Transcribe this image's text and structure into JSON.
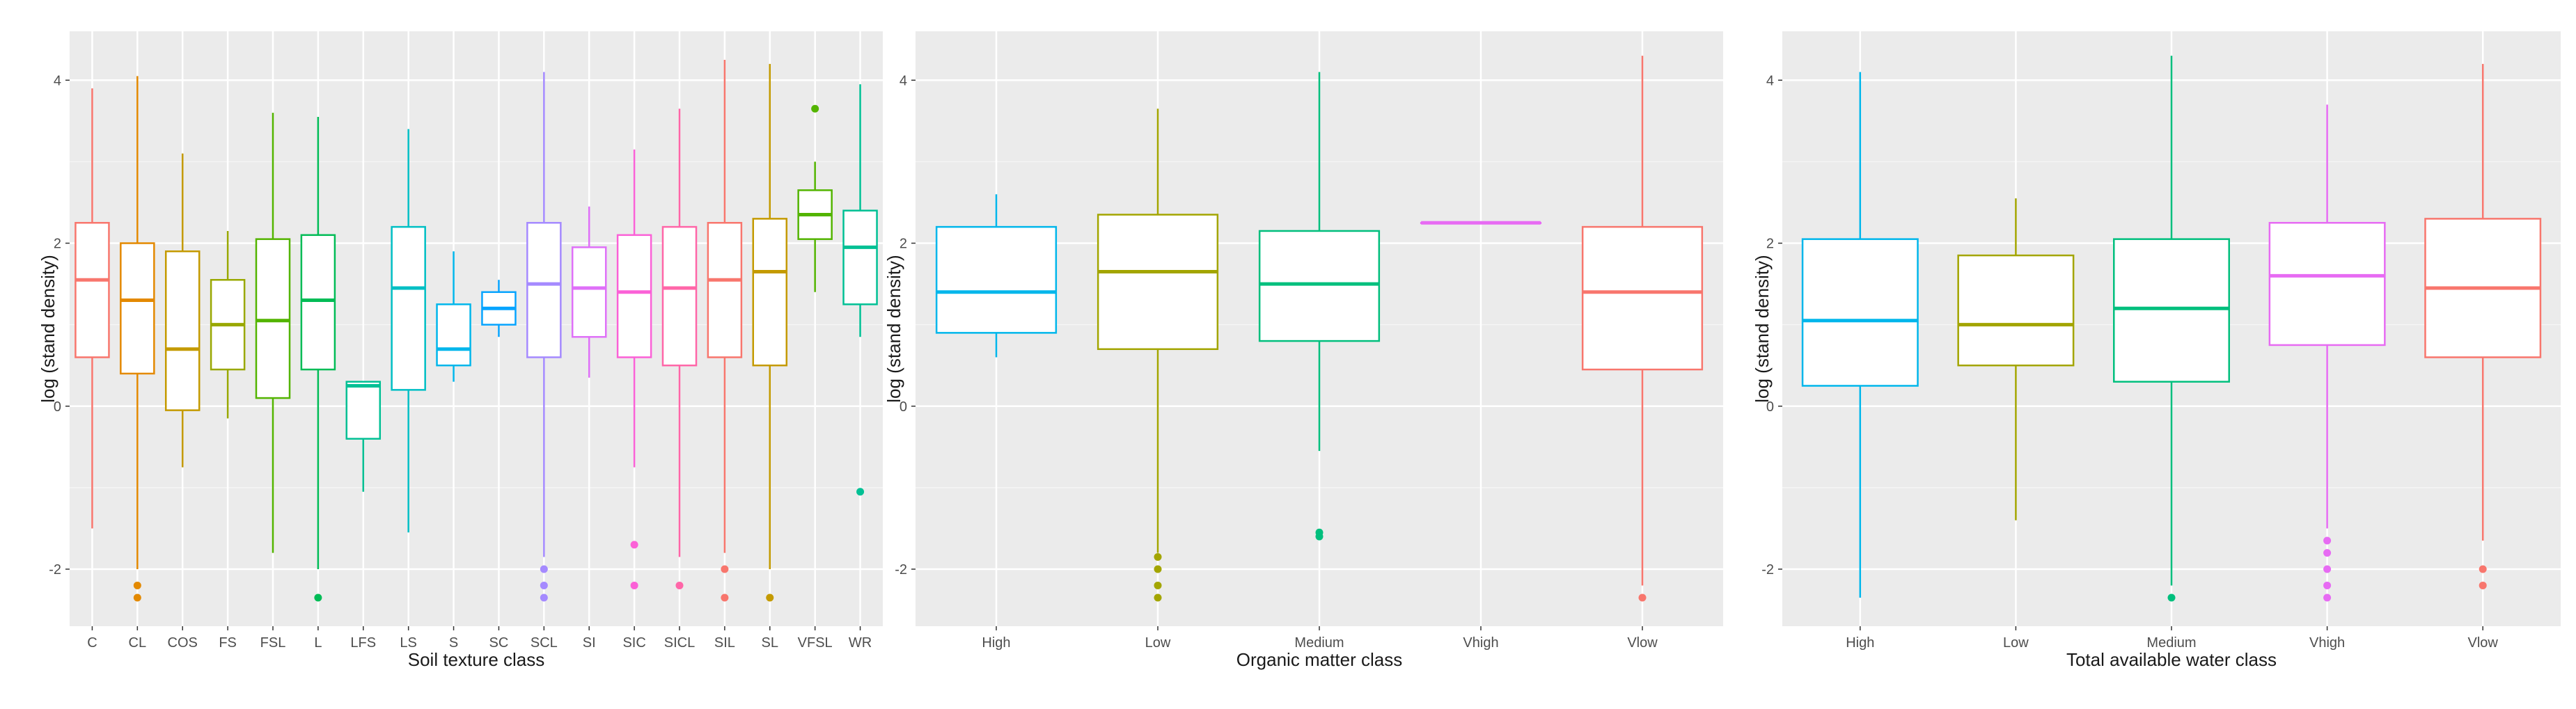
{
  "chart_data": [
    {
      "type": "boxplot",
      "xlabel": "Soil texture class",
      "ylabel": "log (stand density)",
      "ylim": [
        -2.7,
        4.6
      ],
      "yticks": [
        -2,
        0,
        2,
        4
      ],
      "grid": true,
      "legend": "none",
      "categories": [
        "C",
        "CL",
        "COS",
        "FS",
        "FSL",
        "L",
        "LFS",
        "LS",
        "S",
        "SC",
        "SCL",
        "SI",
        "SIC",
        "SICL",
        "SIL",
        "SL",
        "VFSL",
        "WR"
      ],
      "colors": [
        "#F8766D",
        "#E38900",
        "#C49A00",
        "#99A800",
        "#53B400",
        "#00BC56",
        "#00C094",
        "#00BFC4",
        "#00B6EB",
        "#06A4FF",
        "#A58AFF",
        "#DF70F8",
        "#FB61D7",
        "#FF66A8",
        "#F8766D",
        "#C49A00",
        "#53B400",
        "#00C094"
      ],
      "boxes": [
        {
          "lower": -1.5,
          "q1": 0.6,
          "median": 1.55,
          "q3": 2.25,
          "upper": 3.9,
          "outliers": []
        },
        {
          "lower": -2.0,
          "q1": 0.4,
          "median": 1.3,
          "q3": 2.0,
          "upper": 4.05,
          "outliers": [
            -2.2,
            -2.35
          ]
        },
        {
          "lower": -0.75,
          "q1": -0.05,
          "median": 0.7,
          "q3": 1.9,
          "upper": 3.1,
          "outliers": []
        },
        {
          "lower": -0.15,
          "q1": 0.45,
          "median": 1.0,
          "q3": 1.55,
          "upper": 2.15,
          "outliers": []
        },
        {
          "lower": -1.8,
          "q1": 0.1,
          "median": 1.05,
          "q3": 2.05,
          "upper": 3.6,
          "outliers": []
        },
        {
          "lower": -2.0,
          "q1": 0.45,
          "median": 1.3,
          "q3": 2.1,
          "upper": 3.55,
          "outliers": [
            -2.35
          ]
        },
        {
          "lower": -1.05,
          "q1": -0.4,
          "median": 0.25,
          "q3": 0.3,
          "upper": 0.3,
          "outliers": []
        },
        {
          "lower": -1.55,
          "q1": 0.2,
          "median": 1.45,
          "q3": 2.2,
          "upper": 3.4,
          "outliers": []
        },
        {
          "lower": 0.3,
          "q1": 0.5,
          "median": 0.7,
          "q3": 1.25,
          "upper": 1.9,
          "outliers": []
        },
        {
          "lower": 0.85,
          "q1": 1.0,
          "median": 1.2,
          "q3": 1.4,
          "upper": 1.55,
          "outliers": []
        },
        {
          "lower": -1.85,
          "q1": 0.6,
          "median": 1.5,
          "q3": 2.25,
          "upper": 4.1,
          "outliers": [
            -2.0,
            -2.2,
            -2.35
          ]
        },
        {
          "lower": 0.35,
          "q1": 0.85,
          "median": 1.45,
          "q3": 1.95,
          "upper": 2.45,
          "outliers": []
        },
        {
          "lower": -0.75,
          "q1": 0.6,
          "median": 1.4,
          "q3": 2.1,
          "upper": 3.15,
          "outliers": [
            -1.7,
            -2.2
          ]
        },
        {
          "lower": -1.85,
          "q1": 0.5,
          "median": 1.45,
          "q3": 2.2,
          "upper": 3.65,
          "outliers": [
            -2.2
          ]
        },
        {
          "lower": -1.8,
          "q1": 0.6,
          "median": 1.55,
          "q3": 2.25,
          "upper": 4.25,
          "outliers": [
            -2.0,
            -2.35
          ]
        },
        {
          "lower": -2.0,
          "q1": 0.5,
          "median": 1.65,
          "q3": 2.3,
          "upper": 4.2,
          "outliers": [
            -2.35
          ]
        },
        {
          "lower": 1.4,
          "q1": 2.05,
          "median": 2.35,
          "q3": 2.65,
          "upper": 3.0,
          "outliers": [
            3.65
          ]
        },
        {
          "lower": 0.85,
          "q1": 1.25,
          "median": 1.95,
          "q3": 2.4,
          "upper": 3.95,
          "outliers": [
            -1.05
          ]
        }
      ]
    },
    {
      "type": "boxplot",
      "xlabel": "Organic matter class",
      "ylabel": "log (stand density)",
      "ylim": [
        -2.7,
        4.6
      ],
      "yticks": [
        -2,
        0,
        2,
        4
      ],
      "grid": true,
      "legend": "none",
      "categories": [
        "High",
        "Low",
        "Medium",
        "Vhigh",
        "Vlow"
      ],
      "colors": [
        "#00B6EB",
        "#A3A500",
        "#00BF7D",
        "#E76BF3",
        "#F8766D"
      ],
      "boxes": [
        {
          "lower": 0.6,
          "q1": 0.9,
          "median": 1.4,
          "q3": 2.2,
          "upper": 2.6,
          "outliers": []
        },
        {
          "lower": -1.8,
          "q1": 0.7,
          "median": 1.65,
          "q3": 2.35,
          "upper": 3.65,
          "outliers": [
            -1.85,
            -2.0,
            -2.2,
            -2.35
          ]
        },
        {
          "lower": -0.55,
          "q1": 0.8,
          "median": 1.5,
          "q3": 2.15,
          "upper": 4.1,
          "outliers": [
            -1.55,
            -1.6
          ]
        },
        {
          "lower": 2.25,
          "q1": 2.25,
          "median": 2.25,
          "q3": 2.25,
          "upper": 2.25,
          "outliers": []
        },
        {
          "lower": -2.2,
          "q1": 0.45,
          "median": 1.4,
          "q3": 2.2,
          "upper": 4.3,
          "outliers": [
            -2.35
          ]
        }
      ]
    },
    {
      "type": "boxplot",
      "xlabel": "Total available water class",
      "ylabel": "log (stand density)",
      "ylim": [
        -2.7,
        4.6
      ],
      "yticks": [
        -2,
        0,
        2,
        4
      ],
      "grid": true,
      "legend": "none",
      "categories": [
        "High",
        "Low",
        "Medium",
        "Vhigh",
        "Vlow"
      ],
      "colors": [
        "#00B6EB",
        "#A3A500",
        "#00BF7D",
        "#E76BF3",
        "#F8766D"
      ],
      "boxes": [
        {
          "lower": -2.35,
          "q1": 0.25,
          "median": 1.05,
          "q3": 2.05,
          "upper": 4.1,
          "outliers": []
        },
        {
          "lower": -1.4,
          "q1": 0.5,
          "median": 1.0,
          "q3": 1.85,
          "upper": 2.55,
          "outliers": []
        },
        {
          "lower": -2.2,
          "q1": 0.3,
          "median": 1.2,
          "q3": 2.05,
          "upper": 4.3,
          "outliers": [
            -2.35
          ]
        },
        {
          "lower": -1.5,
          "q1": 0.75,
          "median": 1.6,
          "q3": 2.25,
          "upper": 3.7,
          "outliers": [
            -1.65,
            -1.8,
            -2.0,
            -2.2,
            -2.35
          ]
        },
        {
          "lower": -1.65,
          "q1": 0.6,
          "median": 1.45,
          "q3": 2.3,
          "upper": 4.2,
          "outliers": [
            -2.0,
            -2.2
          ]
        }
      ]
    }
  ]
}
